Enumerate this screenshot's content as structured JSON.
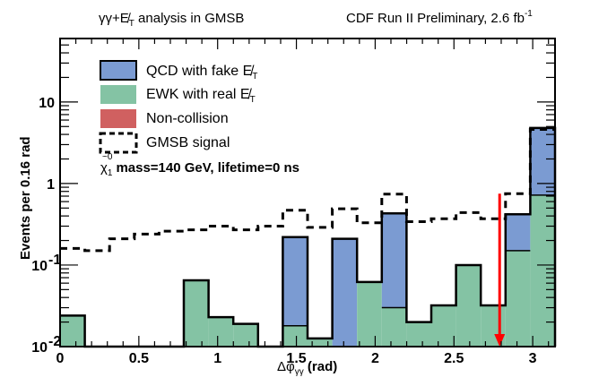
{
  "chart_data": {
    "type": "bar",
    "subtype": "stacked-histogram-log",
    "title_left": "γγ+E̸",
    "title_left_sub": "T",
    "title_left_rest": " analysis in GMSB",
    "title_right": "CDF Run II Preliminary, 2.6 fb",
    "title_right_sup": "-1",
    "xlabel": "Δφ",
    "xlabel_sub": "γγ",
    "xlabel_rest": " (rad)",
    "ylabel": "Events per 0.16 rad",
    "xlim": [
      0,
      3.1416
    ],
    "ylim": [
      0.01,
      60
    ],
    "yscale": "log",
    "grid": false,
    "bins": 20,
    "x_ticks": [
      {
        "value": 0,
        "label": "0"
      },
      {
        "value": 0.5,
        "label": "0.5"
      },
      {
        "value": 1,
        "label": "1"
      },
      {
        "value": 1.5,
        "label": "1.5"
      },
      {
        "value": 2,
        "label": "2"
      },
      {
        "value": 2.5,
        "label": "2.5"
      },
      {
        "value": 3,
        "label": "3"
      }
    ],
    "y_ticks": [
      {
        "value": 0.01,
        "label": "10",
        "sup": "-2"
      },
      {
        "value": 0.1,
        "label": "10",
        "sup": "-1"
      },
      {
        "value": 1,
        "label": "1",
        "sup": ""
      },
      {
        "value": 10,
        "label": "10",
        "sup": ""
      }
    ],
    "series": [
      {
        "name": "EWK with real E̸T",
        "legend_label": "EWK with real E̸",
        "legend_sub": "T",
        "color": "#84c3a4",
        "values": [
          0.024,
          0,
          0,
          0,
          0,
          0.065,
          0.023,
          0.019,
          0,
          0.018,
          0.0126,
          0,
          0.062,
          0.03,
          0.02,
          0.032,
          0.1,
          0.032,
          0.15,
          0.72
        ]
      },
      {
        "name": "QCD with fake E̸T",
        "legend_label": "QCD with fake E̸",
        "legend_sub": "T",
        "color": "#7b9bd2",
        "values": [
          0,
          0,
          0,
          0,
          0,
          0,
          0,
          0,
          0,
          0.202,
          0,
          0.21,
          0,
          0.4,
          0,
          0,
          0,
          0,
          0.27,
          4.08
        ]
      },
      {
        "name": "Non-collision",
        "legend_label": "Non-collision",
        "legend_sub": "",
        "color": "#d06060",
        "values": [
          0,
          0,
          0,
          0,
          0,
          0,
          0,
          0,
          0,
          0,
          0,
          0,
          0,
          0,
          0,
          0,
          0,
          0,
          0,
          0
        ]
      },
      {
        "name": "GMSB signal",
        "legend_label": "GMSB signal",
        "legend_sub": "",
        "color": "#000000",
        "style": "dashed-line",
        "values": [
          0.16,
          0.15,
          0.21,
          0.24,
          0.26,
          0.27,
          0.3,
          0.27,
          0.3,
          0.47,
          0.29,
          0.49,
          0.33,
          0.74,
          0.34,
          0.37,
          0.44,
          0.37,
          0.75,
          4.6
        ]
      }
    ],
    "annotation": {
      "text": "mass=140 GeV, lifetime=0 ns",
      "particle": "χ",
      "particle_sup": "~0",
      "particle_sub": "1"
    },
    "cut_arrow": {
      "x": 2.79,
      "y_top": 0.75,
      "color": "#ff0000"
    },
    "legend_position": "top-left"
  }
}
